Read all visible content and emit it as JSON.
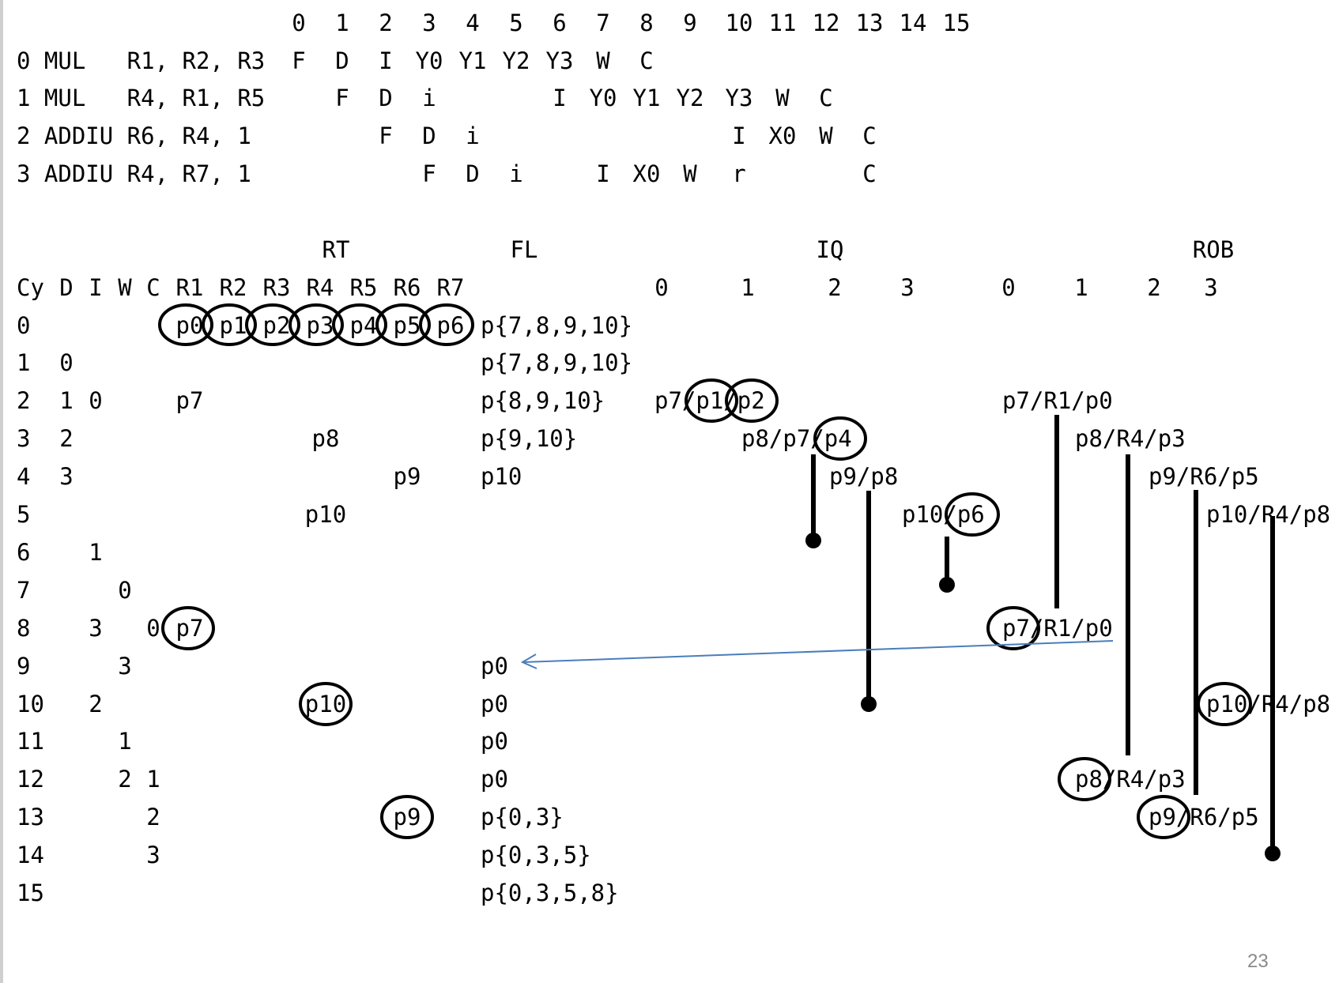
{
  "cycle_header": [
    "0",
    "1",
    "2",
    "3",
    "4",
    "5",
    "6",
    "7",
    "8",
    "9",
    "10",
    "11",
    "12",
    "13",
    "14",
    "15"
  ],
  "instructions": [
    {
      "label": "0 MUL   R1, R2, R3",
      "stages": [
        "F",
        "D",
        "I",
        "Y0",
        "Y1",
        "Y2",
        "Y3",
        "W",
        "C"
      ]
    },
    {
      "label": "1 MUL   R4, R1, R5",
      "stages": [
        "F",
        "D",
        "i",
        "I",
        "Y0",
        "Y1",
        "Y2",
        "Y3",
        "W",
        "C"
      ]
    },
    {
      "label": "2 ADDIU R6, R4, 1",
      "stages": [
        "F",
        "D",
        "i",
        "I",
        "X0",
        "W",
        "C"
      ]
    },
    {
      "label": "3 ADDIU R4, R7, 1",
      "stages": [
        "F",
        "D",
        "i",
        "I",
        "X0",
        "W",
        "r",
        "C"
      ]
    }
  ],
  "sections": {
    "rt": "RT",
    "fl": "FL",
    "iq": "IQ",
    "rob": "ROB"
  },
  "table_header": {
    "cy": "Cy",
    "d": "D",
    "i": "I",
    "w": "W",
    "c": "C",
    "regs": [
      "R1",
      "R2",
      "R3",
      "R4",
      "R5",
      "R6",
      "R7"
    ],
    "iq_slots": [
      "0",
      "1",
      "2",
      "3"
    ],
    "rob_slots": [
      "0",
      "1",
      "2",
      "3"
    ]
  },
  "table_rows": [
    {
      "cy": "0",
      "d": "",
      "i": "",
      "w": "",
      "c": "",
      "rt": [
        "p0",
        "p1",
        "p2",
        "p3",
        "p4",
        "p5",
        "p6"
      ],
      "fl": "p{7,8,9,10}"
    },
    {
      "cy": "1",
      "d": "0",
      "fl": "p{7,8,9,10}"
    },
    {
      "cy": "2",
      "d": "1",
      "i": "0",
      "rt_r1": "p7",
      "fl": "p{8,9,10}",
      "iq": "p7/p1/p2",
      "rob": "p7/R1/p0"
    },
    {
      "cy": "3",
      "d": "2",
      "rt_r4": "p8",
      "fl": "p{9,10}",
      "iq": "p8/p7/p4",
      "rob": "p8/R4/p3"
    },
    {
      "cy": "4",
      "d": "3",
      "rt_r6": "p9",
      "fl": "p10",
      "iq": "p9/p8",
      "rob": "p9/R6/p5"
    },
    {
      "cy": "5",
      "rt_r4": "p10",
      "iq": "p10/p6",
      "rob": "p10/R4/p8"
    },
    {
      "cy": "6",
      "i": "1"
    },
    {
      "cy": "7",
      "w": "0"
    },
    {
      "cy": "8",
      "i": "3",
      "c": "0",
      "rt_r1": "p7",
      "rob": "p7/R1/p0"
    },
    {
      "cy": "9",
      "w": "3",
      "fl": "p0"
    },
    {
      "cy": "10",
      "i": "2",
      "rt_r4": "p10",
      "fl": "p0",
      "rob": "p10/R4/p8"
    },
    {
      "cy": "11",
      "w": "1",
      "fl": "p0"
    },
    {
      "cy": "12",
      "w": "2",
      "c": "1",
      "fl": "p0",
      "rob": "p8/R4/p3"
    },
    {
      "cy": "13",
      "c": "2",
      "rt_r6": "p9",
      "fl": "p{0,3}",
      "rob": "p9/R6/p5"
    },
    {
      "cy": "14",
      "c": "3",
      "fl": "p{0,3,5}"
    },
    {
      "cy": "15",
      "fl": "p{0,3,5,8}"
    }
  ],
  "page_number": "23",
  "colors": {
    "ink": "#000000",
    "arrow": "#4a7ebb",
    "page_number": "#8a8a8a"
  }
}
